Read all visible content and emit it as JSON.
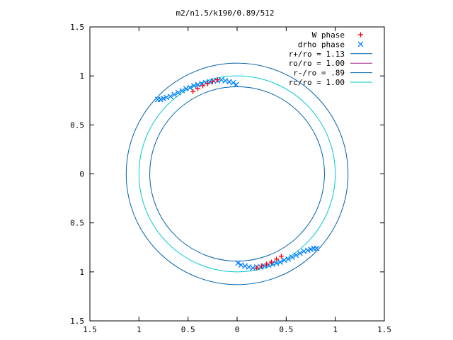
{
  "chart_data": {
    "type": "scatter",
    "title": "m2/n1.5/k190/0.89/512",
    "xlabel": "",
    "ylabel": "",
    "xlim": [
      -1.5,
      1.5
    ],
    "ylim": [
      -1.5,
      1.5
    ],
    "x_tick_values": [
      -1.5,
      -1,
      -0.5,
      0,
      0.5,
      1,
      1.5
    ],
    "x_tick_labels": [
      "1.5",
      "1",
      "0.5",
      "0",
      "0.5",
      "1",
      "1.5"
    ],
    "y_tick_values": [
      1.5,
      1,
      0.5,
      0,
      -0.5,
      -1,
      -1.5
    ],
    "y_tick_labels": [
      "1.5",
      "1",
      "0.5",
      "0",
      "0.5",
      "1",
      "1.5"
    ],
    "grid": false,
    "legend_position": "top-right",
    "series": [
      {
        "name": "W phase",
        "kind": "points",
        "marker": "plus",
        "color": "#ff0000",
        "x": [
          -0.45,
          -0.4,
          -0.35,
          -0.3,
          -0.25,
          -0.2,
          0.45,
          0.4,
          0.35,
          0.3,
          0.25,
          0.2
        ],
        "y": [
          0.84,
          0.87,
          0.9,
          0.92,
          0.94,
          0.96,
          -0.84,
          -0.87,
          -0.9,
          -0.92,
          -0.94,
          -0.96
        ]
      },
      {
        "name": "drho phase",
        "kind": "points",
        "marker": "cross",
        "color": "#0080ff",
        "x": [
          -0.81,
          -0.78,
          -0.75,
          -0.72,
          -0.68,
          -0.64,
          -0.6,
          -0.56,
          -0.52,
          -0.48,
          -0.44,
          -0.4,
          -0.36,
          -0.32,
          -0.28,
          -0.24,
          -0.2,
          -0.16,
          -0.12,
          -0.08,
          -0.04,
          -0.01,
          0.81,
          0.78,
          0.75,
          0.72,
          0.68,
          0.64,
          0.6,
          0.56,
          0.52,
          0.48,
          0.44,
          0.4,
          0.36,
          0.32,
          0.28,
          0.24,
          0.2,
          0.16,
          0.12,
          0.08,
          0.04,
          0.01
        ],
        "y": [
          0.76,
          0.76,
          0.77,
          0.78,
          0.79,
          0.81,
          0.83,
          0.85,
          0.87,
          0.88,
          0.9,
          0.91,
          0.92,
          0.93,
          0.94,
          0.95,
          0.95,
          0.96,
          0.95,
          0.94,
          0.93,
          0.91,
          -0.76,
          -0.76,
          -0.77,
          -0.78,
          -0.79,
          -0.81,
          -0.83,
          -0.85,
          -0.87,
          -0.88,
          -0.9,
          -0.91,
          -0.92,
          -0.93,
          -0.94,
          -0.95,
          -0.95,
          -0.96,
          -0.95,
          -0.94,
          -0.93,
          -0.91
        ]
      },
      {
        "name": "r+/ro = 1.13",
        "kind": "circle",
        "radius": 1.13,
        "color": "#0060ad"
      },
      {
        "name": "ro/ro = 1.00",
        "kind": "legend-only",
        "color": "#a0207f"
      },
      {
        "name": "r-/ro = .89",
        "kind": "circle",
        "radius": 0.89,
        "color": "#0060ad"
      },
      {
        "name": "rc/ro = 1.00",
        "kind": "circle",
        "radius": 1.0,
        "color": "#00c8d0"
      }
    ]
  }
}
